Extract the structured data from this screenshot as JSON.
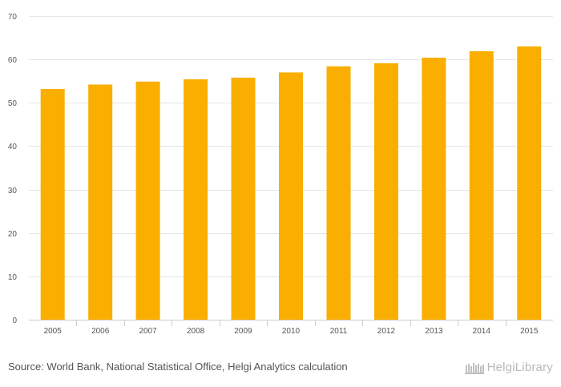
{
  "chart_data": {
    "type": "bar",
    "title": "",
    "xlabel": "",
    "ylabel": "",
    "categories": [
      "2005",
      "2006",
      "2007",
      "2008",
      "2009",
      "2010",
      "2011",
      "2012",
      "2013",
      "2014",
      "2015"
    ],
    "values": [
      53.2,
      54.2,
      54.9,
      55.4,
      55.8,
      57.0,
      58.4,
      59.1,
      60.4,
      61.9,
      63.0
    ],
    "ylim": [
      0,
      70
    ],
    "yticks": [
      0,
      10,
      20,
      30,
      40,
      50,
      60,
      70
    ],
    "grid": true,
    "bar_color": "#F9AE00"
  },
  "footer": {
    "source": "Source: World Bank, National Statistical Office, Helgi Analytics calculation",
    "logo_text": "HelgiLibrary"
  },
  "colors": {
    "grid": "#e6e6e6",
    "text": "#555555",
    "logo": "#b8b8b8"
  }
}
